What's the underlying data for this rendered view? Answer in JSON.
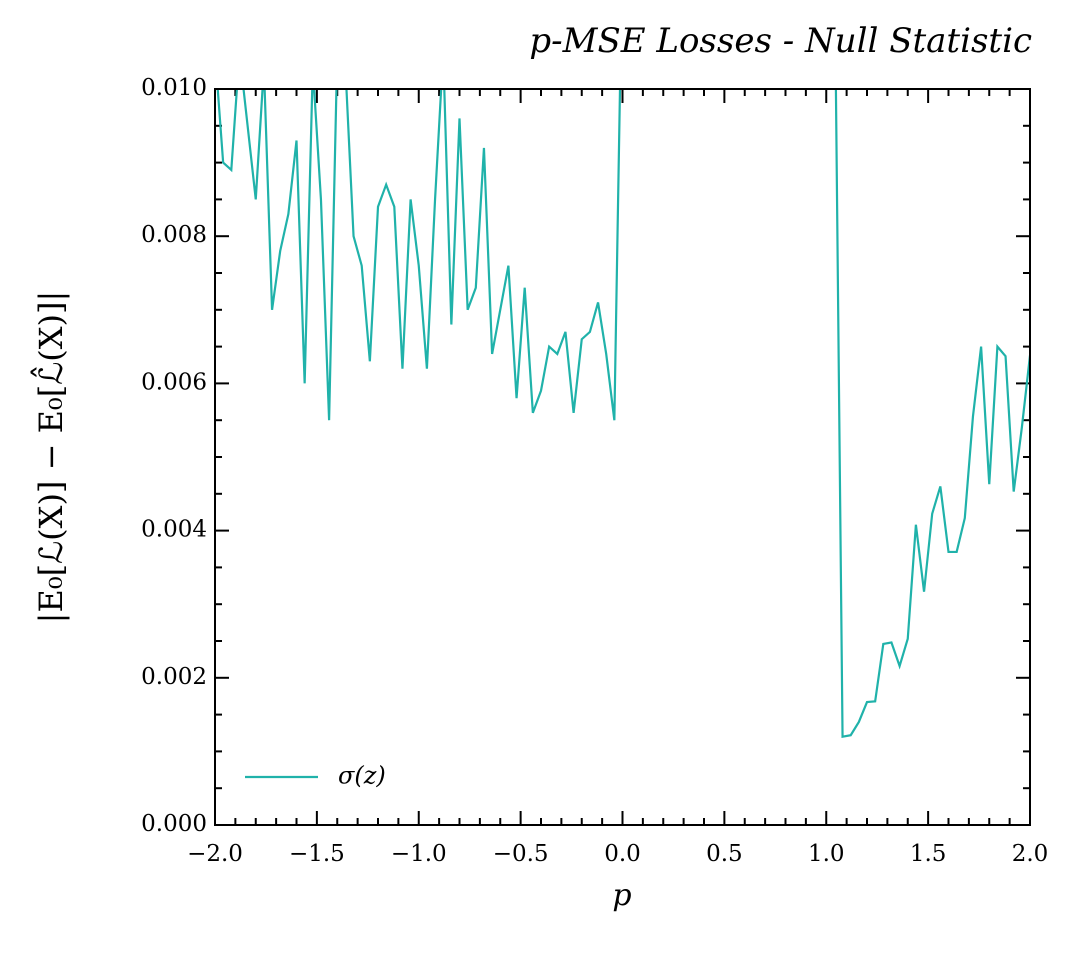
{
  "chart_data": {
    "type": "line",
    "title": "p-MSE Losses - Null Statistic",
    "x_label": "p",
    "y_label": "|E₀[ℒ(X)] − E₀[ℒ̂(X)]|",
    "x": [
      -2.0,
      -1.96,
      -1.92,
      -1.88,
      -1.84,
      -1.8,
      -1.76,
      -1.72,
      -1.68,
      -1.64,
      -1.6,
      -1.56,
      -1.52,
      -1.48,
      -1.44,
      -1.4,
      -1.36,
      -1.32,
      -1.28,
      -1.24,
      -1.2,
      -1.16,
      -1.12,
      -1.08,
      -1.04,
      -1.0,
      -0.96,
      -0.92,
      -0.88,
      -0.84,
      -0.8,
      -0.76,
      -0.72,
      -0.68,
      -0.64,
      -0.6,
      -0.56,
      -0.52,
      -0.48,
      -0.44,
      -0.4,
      -0.36,
      -0.32,
      -0.28,
      -0.24,
      -0.2,
      -0.16,
      -0.12,
      -0.08,
      -0.04,
      0.0,
      1.04,
      1.08,
      1.12,
      1.16,
      1.2,
      1.24,
      1.28,
      1.32,
      1.36,
      1.4,
      1.44,
      1.48,
      1.52,
      1.56,
      1.6,
      1.64,
      1.68,
      1.72,
      1.76,
      1.8,
      1.84,
      1.88,
      1.92,
      1.96,
      2.0
    ],
    "series": [
      {
        "name": "σ(z)",
        "color": "#20b2aa",
        "values": [
          0.0105,
          0.009,
          0.0089,
          0.0105,
          0.0095,
          0.0085,
          0.0103,
          0.007,
          0.0078,
          0.0083,
          0.0093,
          0.006,
          0.0103,
          0.0085,
          0.0055,
          0.0105,
          0.0103,
          0.008,
          0.0076,
          0.0063,
          0.0084,
          0.0087,
          0.0084,
          0.0062,
          0.0085,
          0.0076,
          0.0062,
          0.0085,
          0.0105,
          0.0068,
          0.0096,
          0.007,
          0.0073,
          0.0092,
          0.0064,
          0.007,
          0.0076,
          0.0058,
          0.0073,
          0.0056,
          0.0059,
          0.0065,
          0.0064,
          0.0067,
          0.0056,
          0.0066,
          0.0067,
          0.0071,
          0.0064,
          0.0055,
          0.012,
          0.012,
          0.0012,
          0.00122,
          0.0014,
          0.00167,
          0.00168,
          0.00246,
          0.00248,
          0.00216,
          0.00253,
          0.00408,
          0.00317,
          0.00423,
          0.0046,
          0.00371,
          0.00371,
          0.00417,
          0.00555,
          0.0065,
          0.00463,
          0.0065,
          0.00637,
          0.00453,
          0.0054,
          0.00638
        ]
      }
    ],
    "xlim": [
      -2,
      2
    ],
    "ylim": [
      0,
      0.01
    ],
    "xticks": [
      {
        "value": -2,
        "label": "−2.0"
      },
      {
        "value": -1.5,
        "label": "−1.5"
      },
      {
        "value": -1,
        "label": "−1.0"
      },
      {
        "value": -0.5,
        "label": "−0.5"
      },
      {
        "value": 0,
        "label": "0.0"
      },
      0.5,
      {
        "value": 1,
        "label": "1.0"
      },
      1.5,
      {
        "value": 2,
        "label": "2.0"
      }
    ],
    "yticks": [
      {
        "value": 0,
        "label": "0.000"
      },
      {
        "value": 0.002,
        "label": "0.002"
      },
      {
        "value": 0.004,
        "label": "0.004"
      },
      {
        "value": 0.006,
        "label": "0.006"
      },
      {
        "value": 0.008,
        "label": "0.008"
      },
      {
        "value": 0.01,
        "label": "0.010"
      }
    ],
    "xminorticks": [
      -1.9,
      -1.8,
      -1.7,
      -1.6,
      -1.4,
      -1.3,
      -1.2,
      -1.1,
      -0.9,
      -0.8,
      -0.7,
      -0.6,
      -0.4,
      -0.3,
      -0.2,
      -0.1,
      0.1,
      0.2,
      0.3,
      0.4,
      0.6,
      0.7,
      0.8,
      0.9,
      1.1,
      1.2,
      1.3,
      1.4,
      1.6,
      1.7,
      1.8,
      1.9
    ],
    "yminorticks": [
      0.0005,
      0.001,
      0.0015,
      0.0025,
      0.003,
      0.0035,
      0.0045,
      0.005,
      0.0055,
      0.0065,
      0.007,
      0.0075,
      0.0085,
      0.009,
      0.0095
    ],
    "legend": "lower left"
  }
}
